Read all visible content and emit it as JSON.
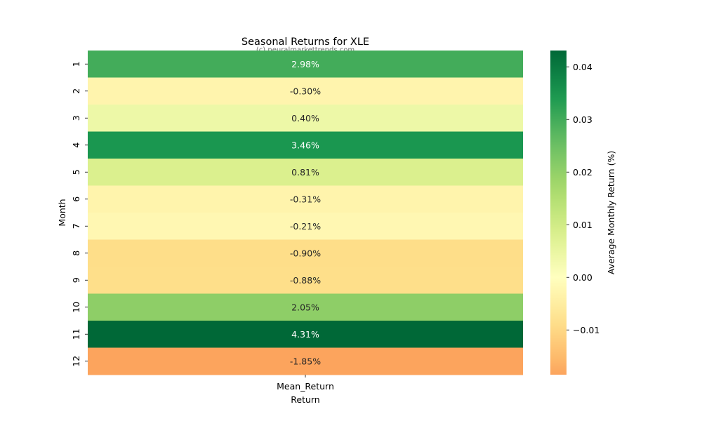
{
  "chart_data": {
    "type": "heatmap",
    "title": "Seasonal Returns for XLE",
    "subtitle": "(c) neuralmarkettrends.com",
    "xlabel": "Return",
    "ylabel": "Month",
    "columns": [
      "Mean_Return"
    ],
    "rows": [
      "1",
      "2",
      "3",
      "4",
      "5",
      "6",
      "7",
      "8",
      "9",
      "10",
      "11",
      "12"
    ],
    "values": [
      0.0298,
      -0.003,
      0.004,
      0.0346,
      0.0081,
      -0.0031,
      -0.0021,
      -0.009,
      -0.0088,
      0.0205,
      0.0431,
      -0.0185
    ],
    "annotations": [
      "2.98%",
      "-0.30%",
      "0.40%",
      "3.46%",
      "0.81%",
      "-0.31%",
      "-0.21%",
      "-0.90%",
      "-0.88%",
      "2.05%",
      "4.31%",
      "-1.85%"
    ],
    "colorbar": {
      "label": "Average Monthly Return (%)",
      "ticks": [
        0.04,
        0.03,
        0.02,
        0.01,
        0.0,
        -0.01
      ],
      "tick_labels": [
        "0.04",
        "0.03",
        "0.02",
        "0.01",
        "0.00",
        "−0.01"
      ],
      "vmin": -0.0185,
      "vmax": 0.0431,
      "colormap": "RdYlGn",
      "center": 0
    }
  }
}
